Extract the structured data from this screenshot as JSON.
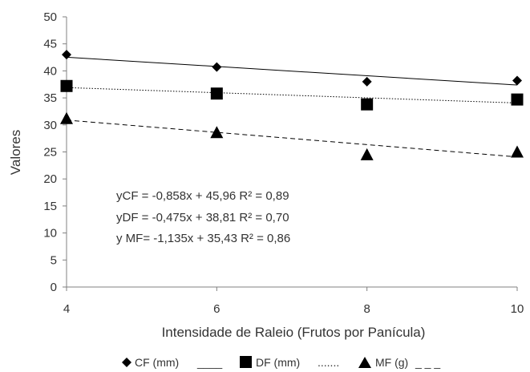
{
  "chart_data": {
    "type": "scatter",
    "title": "",
    "xlabel": "Intensidade de Raleio (Frutos por Panícula)",
    "ylabel": "Valores",
    "xlim": [
      4,
      10
    ],
    "ylim": [
      0,
      50
    ],
    "xticks": [
      "4",
      "6",
      "8",
      "10"
    ],
    "yticks": [
      "0",
      "5",
      "10",
      "15",
      "20",
      "25",
      "30",
      "35",
      "40",
      "45",
      "50"
    ],
    "grid": false,
    "x": [
      4,
      6,
      8,
      10
    ],
    "series": [
      {
        "name": "CF (mm)",
        "legend_text": "CF (mm)",
        "legend_line_text": "____",
        "marker": "diamond",
        "line_style": "solid",
        "values": [
          43,
          40.7,
          38,
          38.2
        ],
        "trend": {
          "slope": -0.858,
          "intercept": 45.96,
          "r2": 0.89
        }
      },
      {
        "name": "DF (mm)",
        "legend_text": "DF (mm)",
        "legend_line_text": ".......",
        "marker": "square",
        "line_style": "dotted",
        "values": [
          37.2,
          35.8,
          33.8,
          34.7
        ],
        "trend": {
          "slope": -0.475,
          "intercept": 38.81,
          "r2": 0.7
        }
      },
      {
        "name": "MF (g)",
        "legend_text": "MF (g)",
        "legend_line_text": "_ _ _",
        "marker": "triangle",
        "line_style": "dashed",
        "values": [
          31.2,
          28.6,
          24.5,
          25
        ],
        "trend": {
          "slope": -1.135,
          "intercept": 35.43,
          "r2": 0.86
        }
      }
    ],
    "annotations": [
      "yCF = -0,858x + 45,96 R² = 0,89",
      "yDF = -0,475x + 38,81 R² = 0,70",
      "y MF= -1,135x + 35,43 R² = 0,86"
    ],
    "legend_position": "bottom",
    "colors": {
      "marker": "#000000",
      "axis": "#808080",
      "text": "#333333"
    }
  }
}
